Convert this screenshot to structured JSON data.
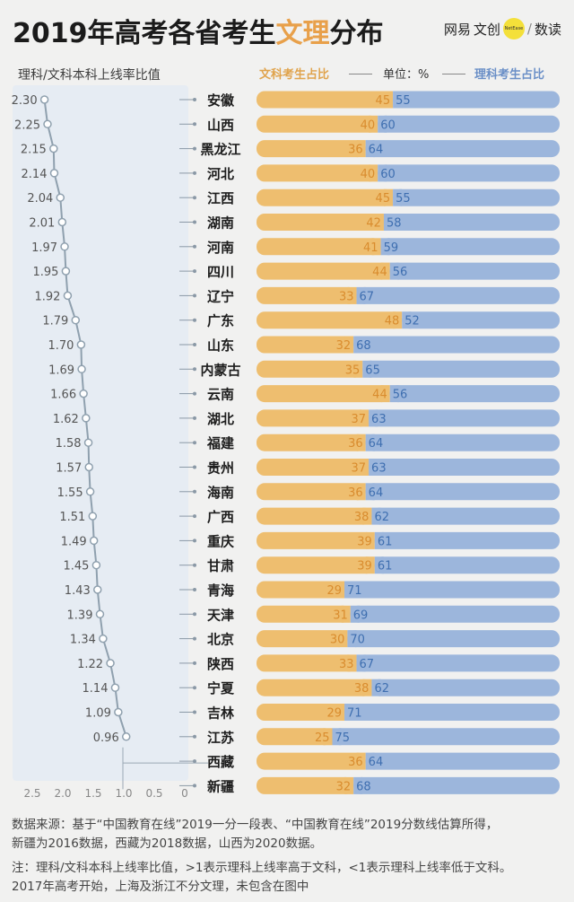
{
  "title": {
    "part1": "2019年高考各省考生",
    "highlight": "文理",
    "part2": "分布"
  },
  "brand": {
    "name1": "网易",
    "name2": "文创",
    "logo_text": "NetEase",
    "slash": "/",
    "name3": "数读"
  },
  "left_axis_title": "理科/文科本科上线率比值",
  "legend": {
    "wen": "文科考生占比",
    "unit": "单位：%",
    "li": "理科考生占比"
  },
  "colors": {
    "wen": "#eebe6f",
    "li": "#9cb6dc",
    "line": "#8fa0ae",
    "panel": "#e6ecf3",
    "wen_text": "#d98c2e",
    "li_text": "#3f6fb0"
  },
  "chart_data": [
    {
      "type": "line",
      "title": "理科/文科本科上线率比值",
      "orientation": "horizontal",
      "x_axis": {
        "range": [
          2.5,
          0
        ],
        "reversed": true,
        "ticks": [
          "2.5",
          "2.0",
          "1.5",
          "1.0",
          "0.5",
          "0"
        ]
      },
      "reference_line": 1.0,
      "categories": [
        "安徽",
        "山西",
        "黑龙江",
        "河北",
        "江西",
        "湖南",
        "河南",
        "四川",
        "辽宁",
        "广东",
        "山东",
        "内蒙古",
        "云南",
        "湖北",
        "福建",
        "贵州",
        "海南",
        "广西",
        "重庆",
        "甘肃",
        "青海",
        "天津",
        "北京",
        "陕西",
        "宁夏",
        "吉林",
        "江苏",
        "西藏",
        "新疆"
      ],
      "values": [
        2.3,
        2.25,
        2.15,
        2.14,
        2.04,
        2.01,
        1.97,
        1.95,
        1.92,
        1.79,
        1.7,
        1.69,
        1.66,
        1.62,
        1.58,
        1.57,
        1.55,
        1.51,
        1.49,
        1.45,
        1.43,
        1.39,
        1.34,
        1.22,
        1.14,
        1.09,
        0.96,
        null,
        null
      ],
      "labels": [
        "2.30",
        "2.25",
        "2.15",
        "2.14",
        "2.04",
        "2.01",
        "1.97",
        "1.95",
        "1.92",
        "1.79",
        "1.70",
        "1.69",
        "1.66",
        "1.62",
        "1.58",
        "1.57",
        "1.55",
        "1.51",
        "1.49",
        "1.45",
        "1.43",
        "1.39",
        "1.34",
        "1.22",
        "1.14",
        "1.09",
        "0.96",
        null,
        null
      ]
    },
    {
      "type": "bar",
      "stacked": true,
      "orientation": "horizontal",
      "categories": [
        "安徽",
        "山西",
        "黑龙江",
        "河北",
        "江西",
        "湖南",
        "河南",
        "四川",
        "辽宁",
        "广东",
        "山东",
        "内蒙古",
        "云南",
        "湖北",
        "福建",
        "贵州",
        "海南",
        "广西",
        "重庆",
        "甘肃",
        "青海",
        "天津",
        "北京",
        "陕西",
        "宁夏",
        "吉林",
        "江苏",
        "西藏",
        "新疆"
      ],
      "series": [
        {
          "name": "文科考生占比",
          "values": [
            45,
            40,
            36,
            40,
            45,
            42,
            41,
            44,
            33,
            48,
            32,
            35,
            44,
            37,
            36,
            37,
            36,
            38,
            39,
            39,
            29,
            31,
            30,
            33,
            38,
            29,
            25,
            36,
            32
          ]
        },
        {
          "name": "理科考生占比",
          "values": [
            55,
            60,
            64,
            60,
            55,
            58,
            59,
            56,
            67,
            52,
            68,
            65,
            56,
            63,
            64,
            63,
            64,
            62,
            61,
            61,
            71,
            69,
            70,
            67,
            62,
            71,
            75,
            64,
            68
          ]
        }
      ],
      "unit": "%"
    }
  ],
  "notes": {
    "source1": "数据来源：基于“中国教育在线”2019一分一段表、“中国教育在线”2019分数线估算所得，",
    "source2": "新疆为2016数据，西藏为2018数据，山西为2020数据。",
    "note1": "注：理科/文科本科上线率比值，>1表示理科上线率高于文科，<1表示理科上线率低于文科。",
    "note2": "2017年高考开始，上海及浙江不分文理，未包含在图中"
  }
}
